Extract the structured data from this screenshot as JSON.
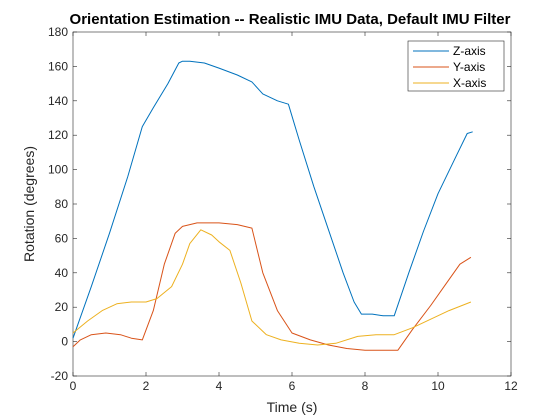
{
  "chart_data": {
    "type": "line",
    "title": "Orientation Estimation -- Realistic IMU Data, Default IMU Filter",
    "xlabel": "Time (s)",
    "ylabel": "Rotation (degrees)",
    "xlim": [
      0,
      12
    ],
    "ylim": [
      -20,
      180
    ],
    "xticks": [
      0,
      2,
      4,
      6,
      8,
      10,
      12
    ],
    "yticks": [
      -20,
      0,
      20,
      40,
      60,
      80,
      100,
      120,
      140,
      160,
      180
    ],
    "xtick_labels": [
      "0",
      "2",
      "4",
      "6",
      "8",
      "10",
      "12"
    ],
    "ytick_labels": [
      "-20",
      "0",
      "20",
      "40",
      "60",
      "80",
      "100",
      "120",
      "140",
      "160",
      "180"
    ],
    "grid": false,
    "legend_position": "top-right",
    "series": [
      {
        "name": "Z-axis",
        "color": "#0072BD",
        "x": [
          0,
          0.5,
          1.0,
          1.5,
          1.9,
          2.2,
          2.6,
          2.9,
          3.0,
          3.2,
          3.6,
          4.0,
          4.5,
          4.9,
          5.2,
          5.6,
          5.9,
          6.2,
          6.6,
          7.0,
          7.4,
          7.7,
          7.9,
          8.2,
          8.5,
          8.8,
          9.2,
          9.6,
          10.0,
          10.5,
          10.8,
          10.95
        ],
        "y": [
          2,
          32,
          63,
          96,
          125,
          136,
          150,
          162,
          163,
          163,
          162,
          159,
          155,
          151,
          144,
          140,
          138,
          117,
          90,
          65,
          40,
          23,
          16,
          16,
          15,
          15,
          40,
          64,
          86,
          108,
          121,
          122
        ]
      },
      {
        "name": "Y-axis",
        "color": "#D95319",
        "x": [
          0,
          0.2,
          0.5,
          0.9,
          1.3,
          1.6,
          1.9,
          2.2,
          2.5,
          2.8,
          3.0,
          3.4,
          4.0,
          4.5,
          4.9,
          5.2,
          5.6,
          6.0,
          6.5,
          7.0,
          7.5,
          8.0,
          8.5,
          8.9,
          9.3,
          9.8,
          10.2,
          10.6,
          10.9
        ],
        "y": [
          -3,
          1,
          4,
          5,
          4,
          2,
          1,
          18,
          45,
          63,
          67,
          69,
          69,
          68,
          66,
          40,
          18,
          5,
          1,
          -2,
          -4,
          -5,
          -5,
          -5,
          7,
          21,
          33,
          45,
          49
        ]
      },
      {
        "name": "X-axis",
        "color": "#EDB120",
        "x": [
          0,
          0.4,
          0.8,
          1.2,
          1.6,
          2.0,
          2.3,
          2.7,
          3.0,
          3.2,
          3.5,
          3.8,
          4.0,
          4.3,
          4.6,
          4.9,
          5.3,
          5.7,
          6.2,
          6.7,
          7.2,
          7.8,
          8.3,
          8.8,
          9.3,
          9.8,
          10.3,
          10.9
        ],
        "y": [
          5,
          12,
          18,
          22,
          23,
          23,
          25,
          32,
          45,
          57,
          65,
          62,
          58,
          53,
          34,
          12,
          4,
          1,
          -1,
          -2,
          -1,
          3,
          4,
          4,
          8,
          13,
          18,
          23
        ]
      }
    ]
  }
}
